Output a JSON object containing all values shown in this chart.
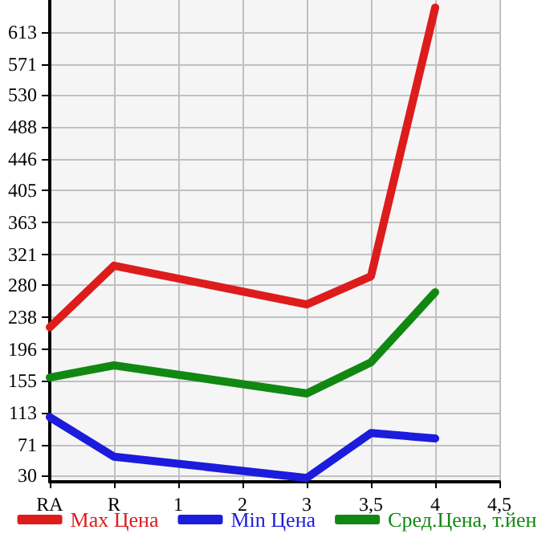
{
  "chart_data": {
    "type": "line",
    "categories": [
      "RA",
      "R",
      "1",
      "2",
      "3",
      "3,5",
      "4",
      "4,5"
    ],
    "series": [
      {
        "name": "Max Цена",
        "color": "#dd1c1c",
        "values": [
          225,
          306,
          null,
          null,
          255,
          292,
          645,
          null
        ]
      },
      {
        "name": "Min Цена",
        "color": "#1c1cdd",
        "values": [
          107,
          55,
          null,
          null,
          27,
          86,
          79,
          null
        ]
      },
      {
        "name": "Сред.Цена, т.йен",
        "color": "#118811",
        "values": [
          159,
          175,
          null,
          null,
          138,
          179,
          271,
          null
        ]
      }
    ],
    "ylim": [
      22,
      655
    ],
    "yticks": [
      30,
      71,
      113,
      155,
      196,
      238,
      280,
      321,
      363,
      405,
      446,
      488,
      530,
      571,
      613
    ],
    "grid": true,
    "legend": "bottom",
    "marker": "none",
    "line_style": "solid"
  }
}
